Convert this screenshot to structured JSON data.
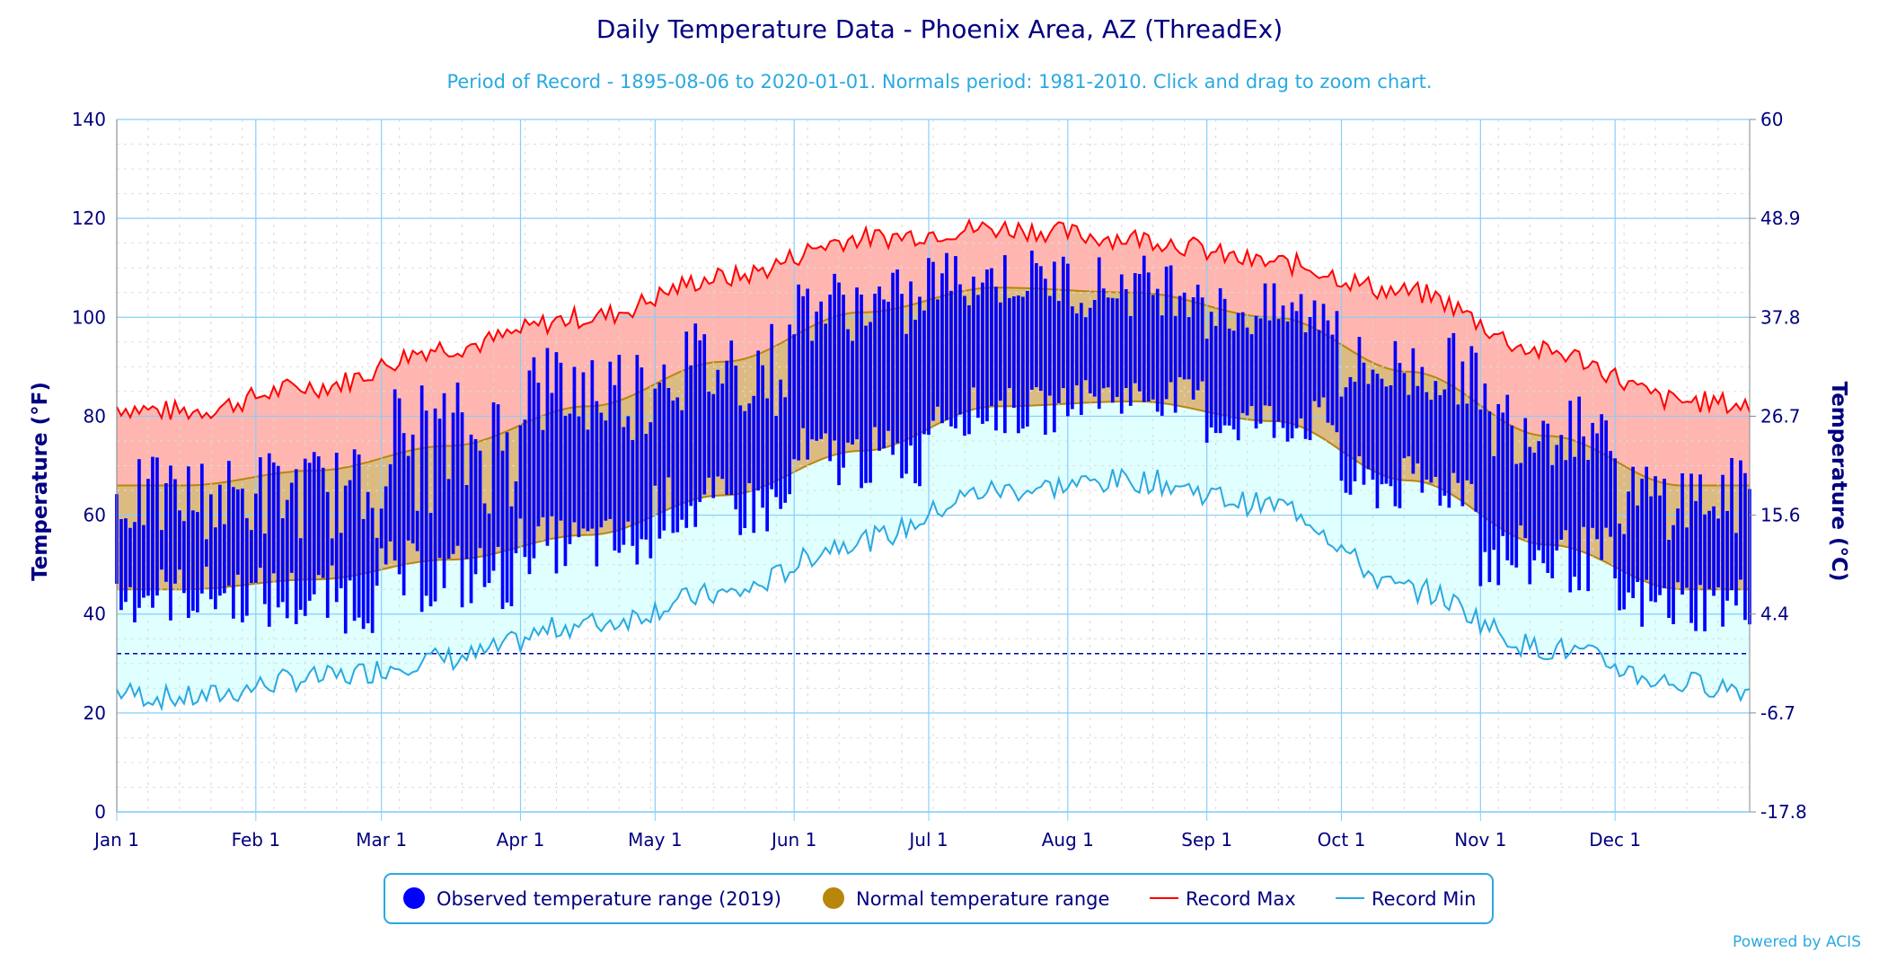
{
  "chart_data": {
    "type": "area",
    "title": "Daily Temperature Data - Phoenix Area, AZ (ThreadEx)",
    "subtitle": "Period of Record - 1895-08-06 to 2020-01-01. Normals period: 1981-2010. Click and drag to zoom chart.",
    "ylabel_left": "Temperature (°F)",
    "ylabel_right": "Temperature (°C)",
    "ylim": [
      0,
      140
    ],
    "y_ticks": [
      "0",
      "20",
      "40",
      "60",
      "80",
      "100",
      "120",
      "140"
    ],
    "y_ticks_right": [
      "-17.8",
      "-6.7",
      "4.4",
      "15.6",
      "26.7",
      "37.8",
      "48.9",
      "60"
    ],
    "x_ticks": [
      "Jan 1",
      "Feb 1",
      "Mar 1",
      "Apr 1",
      "May 1",
      "Jun 1",
      "Jul 1",
      "Aug 1",
      "Sep 1",
      "Oct 1",
      "Nov 1",
      "Dec 1"
    ],
    "x_tick_days": [
      1,
      32,
      60,
      91,
      121,
      152,
      182,
      213,
      244,
      274,
      305,
      335
    ],
    "freezing_line_f": 32,
    "legend_position": "bottom-center",
    "series": [
      {
        "name": "Observed temperature range (2019)",
        "kind": "daily-bars",
        "color": "#0000ff",
        "monthly_samples": [
          {
            "month": "Jan",
            "low_range": [
              38,
              50
            ],
            "high_range": [
              55,
              72
            ]
          },
          {
            "month": "Feb",
            "low_range": [
              36,
              50
            ],
            "high_range": [
              55,
              74
            ]
          },
          {
            "month": "Mar",
            "low_range": [
              40,
              55
            ],
            "high_range": [
              60,
              88
            ]
          },
          {
            "month": "Apr",
            "low_range": [
              48,
              60
            ],
            "high_range": [
              75,
              96
            ]
          },
          {
            "month": "May",
            "low_range": [
              55,
              68
            ],
            "high_range": [
              80,
              100
            ]
          },
          {
            "month": "Jun",
            "low_range": [
              65,
              78
            ],
            "high_range": [
              95,
              110
            ]
          },
          {
            "month": "Jul",
            "low_range": [
              76,
              86
            ],
            "high_range": [
              102,
              114
            ]
          },
          {
            "month": "Aug",
            "low_range": [
              80,
              88
            ],
            "high_range": [
              100,
              113
            ]
          },
          {
            "month": "Sep",
            "low_range": [
              74,
              84
            ],
            "high_range": [
              95,
              107
            ]
          },
          {
            "month": "Oct",
            "low_range": [
              60,
              72
            ],
            "high_range": [
              82,
              97
            ]
          },
          {
            "month": "Nov",
            "low_range": [
              44,
              58
            ],
            "high_range": [
              70,
              88
            ]
          },
          {
            "month": "Dec",
            "low_range": [
              36,
              48
            ],
            "high_range": [
              55,
              72
            ]
          }
        ]
      },
      {
        "name": "Normal temperature range",
        "kind": "band",
        "color": "#b8860b",
        "monthly_mid": [
          {
            "month": "Jan",
            "low": 45,
            "high": 66
          },
          {
            "month": "Feb",
            "low": 47,
            "high": 69
          },
          {
            "month": "Mar",
            "low": 51,
            "high": 74
          },
          {
            "month": "Apr",
            "low": 56,
            "high": 82
          },
          {
            "month": "May",
            "low": 64,
            "high": 91
          },
          {
            "month": "Jun",
            "low": 73,
            "high": 101
          },
          {
            "month": "Jul",
            "low": 82,
            "high": 106
          },
          {
            "month": "Aug",
            "low": 83,
            "high": 105
          },
          {
            "month": "Sep",
            "low": 79,
            "high": 100
          },
          {
            "month": "Oct",
            "low": 67,
            "high": 89
          },
          {
            "month": "Nov",
            "low": 54,
            "high": 76
          },
          {
            "month": "Dec",
            "low": 45,
            "high": 66
          }
        ]
      },
      {
        "name": "Record Max",
        "kind": "line",
        "color": "#ff0000",
        "monthly_mid": [
          {
            "month": "Jan",
            "value": 81
          },
          {
            "month": "Feb",
            "value": 86
          },
          {
            "month": "Mar",
            "value": 94
          },
          {
            "month": "Apr",
            "value": 100
          },
          {
            "month": "May",
            "value": 108
          },
          {
            "month": "Jun",
            "value": 116
          },
          {
            "month": "Jul",
            "value": 118
          },
          {
            "month": "Aug",
            "value": 116
          },
          {
            "month": "Sep",
            "value": 111
          },
          {
            "month": "Oct",
            "value": 105
          },
          {
            "month": "Nov",
            "value": 93
          },
          {
            "month": "Dec",
            "value": 83
          }
        ]
      },
      {
        "name": "Record Min",
        "kind": "line",
        "color": "#29a9e0",
        "monthly_mid": [
          {
            "month": "Jan",
            "value": 23
          },
          {
            "month": "Feb",
            "value": 27
          },
          {
            "month": "Mar",
            "value": 31
          },
          {
            "month": "Apr",
            "value": 38
          },
          {
            "month": "May",
            "value": 44
          },
          {
            "month": "Jun",
            "value": 55
          },
          {
            "month": "Jul",
            "value": 65
          },
          {
            "month": "Aug",
            "value": 67
          },
          {
            "month": "Sep",
            "value": 62
          },
          {
            "month": "Oct",
            "value": 45
          },
          {
            "month": "Nov",
            "value": 33
          },
          {
            "month": "Dec",
            "value": 26
          }
        ]
      }
    ]
  },
  "legend": {
    "observed_label": "Observed temperature range (2019)",
    "normal_label": "Normal temperature range",
    "record_max_label": "Record Max",
    "record_min_label": "Record Min"
  },
  "credits": "Powered by ACIS",
  "colors": {
    "title": "#000080",
    "subtitle": "#29a9e0",
    "axis_text": "#000080",
    "observed": "#0000ff",
    "normal_fill": "#b8860b",
    "record_max_line": "#ff0000",
    "record_max_fill": "#ffb6b0",
    "record_min_line": "#29a9e0",
    "record_min_fill": "#e0ffff",
    "grid": "#87cefa"
  }
}
